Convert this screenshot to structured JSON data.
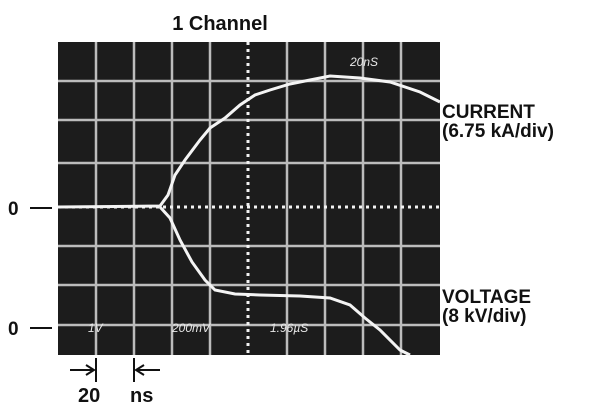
{
  "title": "1 Channel",
  "current_label": {
    "name": "CURRENT",
    "scale": "(6.75 kA/div)"
  },
  "voltage_label": {
    "name": "VOLTAGE",
    "scale": "(8 kV/div)"
  },
  "zero_markers": [
    "0",
    "0"
  ],
  "time_scale": {
    "value": "20",
    "unit": "ns"
  },
  "screen_texts": {
    "top_right": "20nS",
    "ch1": "1V",
    "ch2": "200mV",
    "timebase": "1.96µS"
  }
}
